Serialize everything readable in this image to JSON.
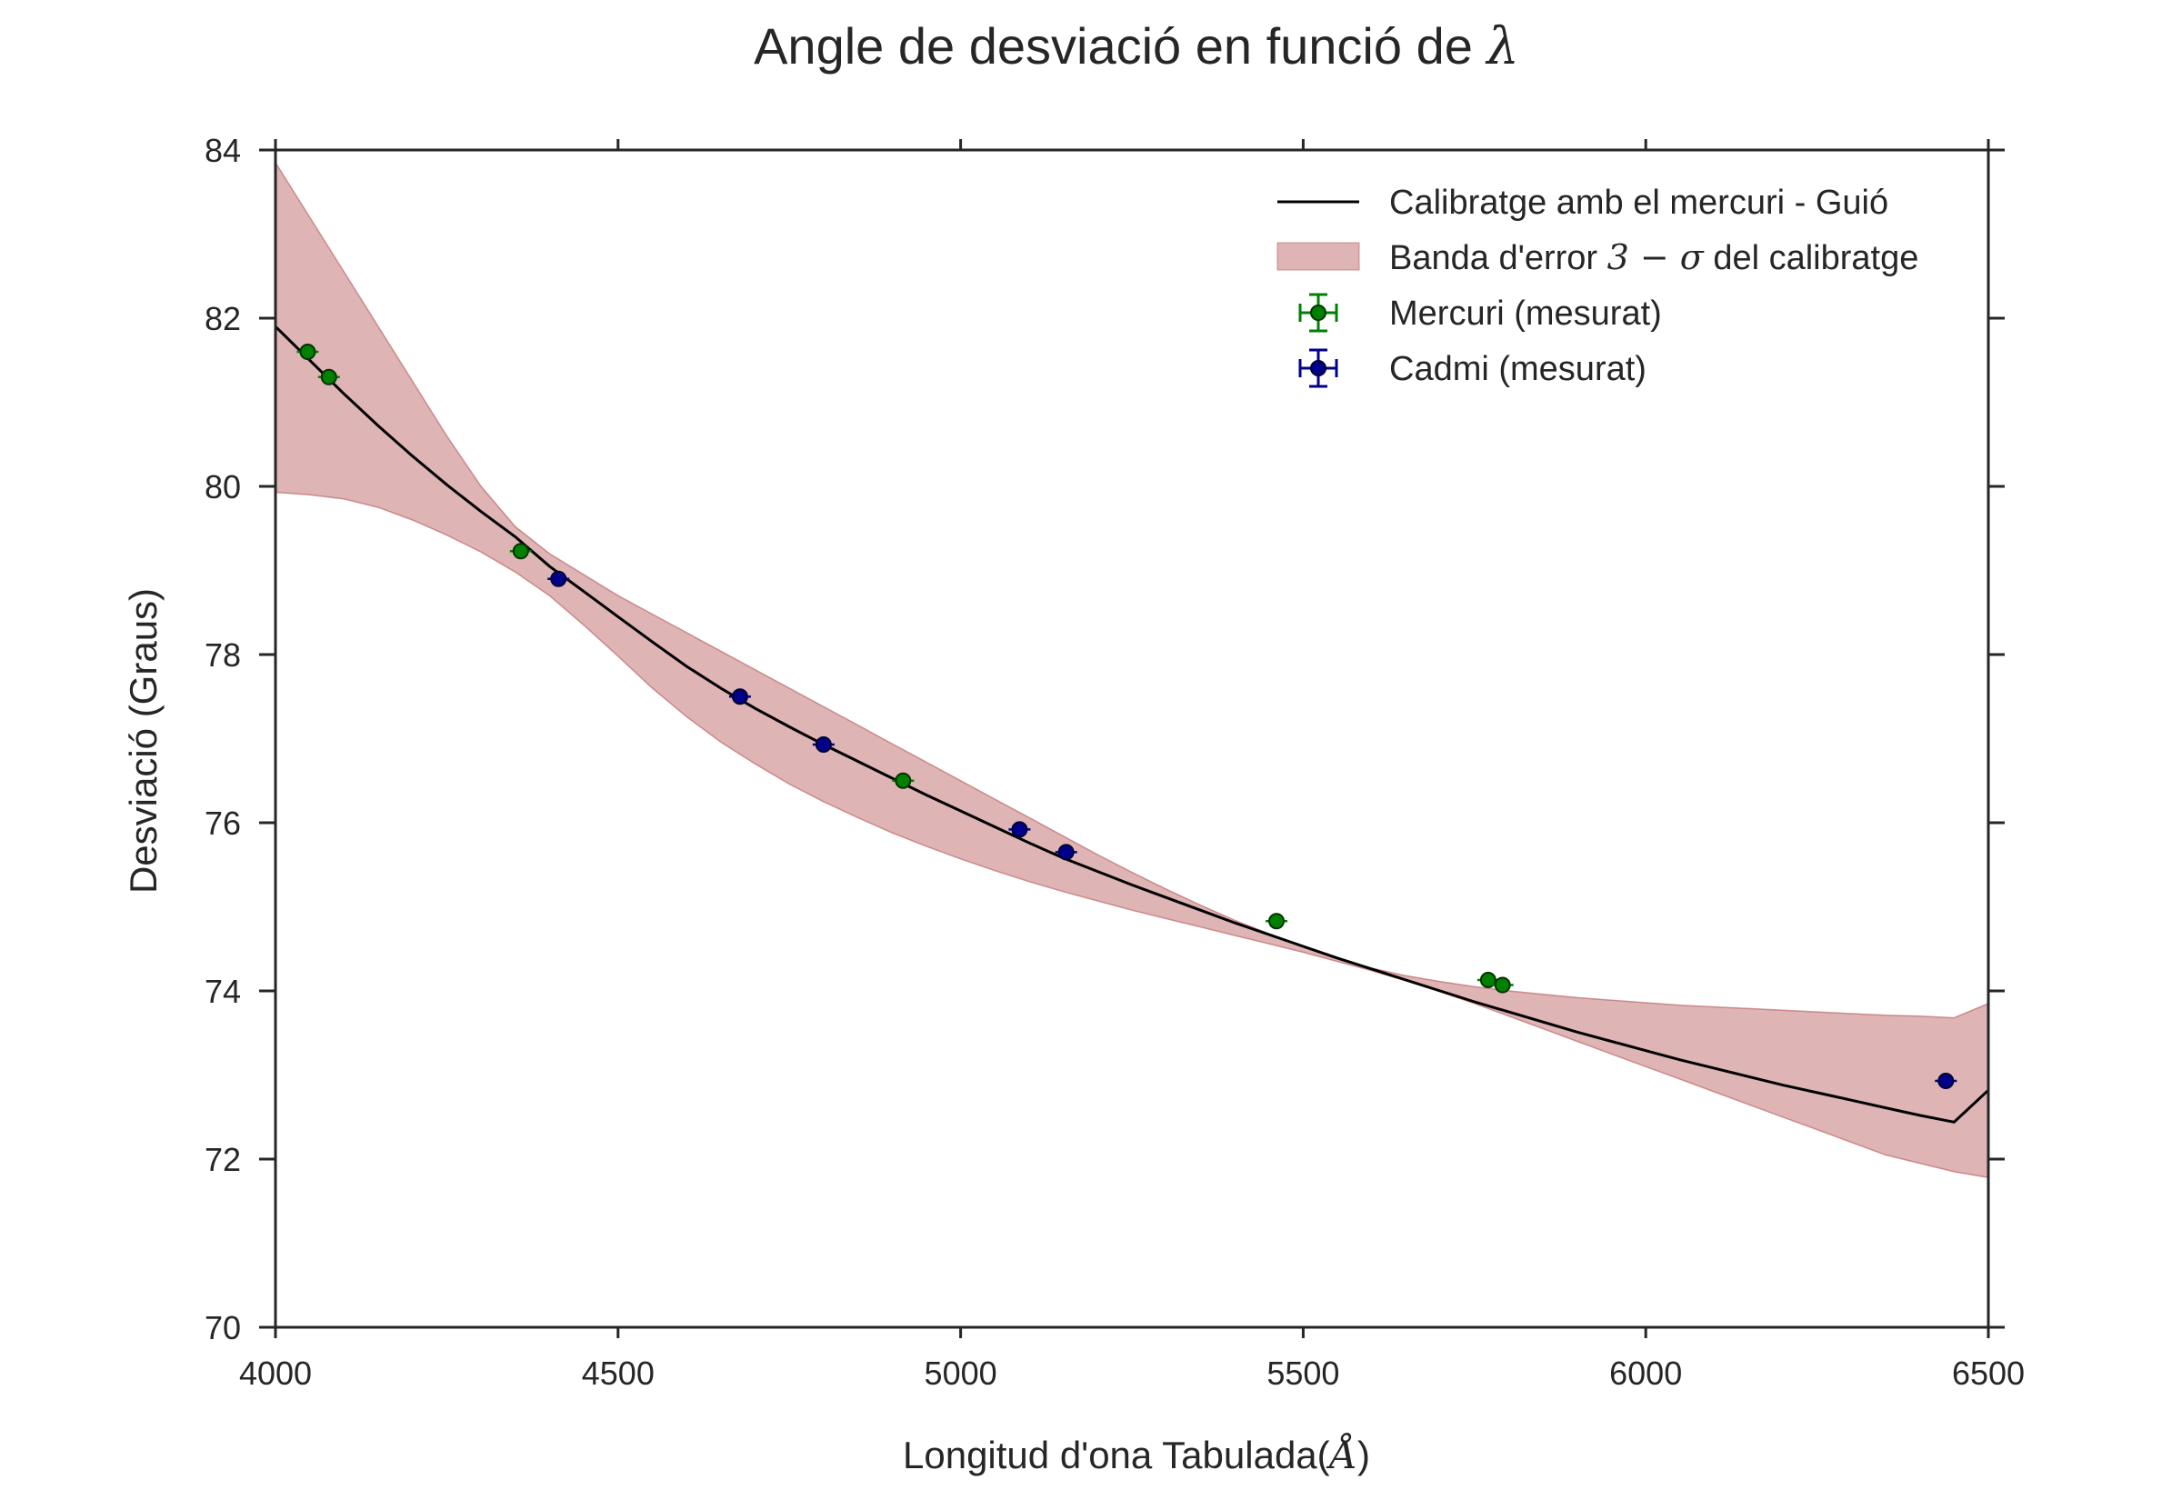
{
  "chart_data": {
    "type": "scatter",
    "title": "Angle de desviació en funció de",
    "title_symbol": "λ",
    "xlabel": "Longitud d'ona Tabulada(",
    "xlabel_unit": "Å",
    "xlabel_close": ")",
    "ylabel": "Desviació (Graus)",
    "xlim": [
      4000,
      6500
    ],
    "ylim": [
      70,
      84
    ],
    "xticks": [
      4000,
      4500,
      5000,
      5500,
      6000,
      6500
    ],
    "yticks": [
      70,
      72,
      74,
      76,
      78,
      80,
      82,
      84
    ],
    "x_tick_labels": [
      "4000",
      "4500",
      "5000",
      "5500",
      "6000",
      "6500"
    ],
    "y_tick_labels": [
      "70",
      "72",
      "74",
      "76",
      "78",
      "80",
      "82",
      "84"
    ],
    "grid": false,
    "legend_position": "top-right",
    "calibration_curve": {
      "name": "Calibratge amb el mercuri - Guió",
      "color": "#000000",
      "x": [
        4000,
        4050,
        4100,
        4150,
        4200,
        4250,
        4300,
        4350,
        4400,
        4450,
        4500,
        4550,
        4600,
        4650,
        4700,
        4750,
        4800,
        4850,
        4900,
        4950,
        5000,
        5050,
        5100,
        5150,
        5200,
        5250,
        5300,
        5350,
        5400,
        5450,
        5500,
        5550,
        5600,
        5650,
        5700,
        5750,
        5800,
        5850,
        5900,
        5950,
        6000,
        6050,
        6100,
        6150,
        6200,
        6250,
        6300,
        6350,
        6400,
        6450,
        6500
      ],
      "y": [
        81.9,
        81.5,
        81.1,
        80.72,
        80.36,
        80.02,
        79.7,
        79.4,
        79.05,
        78.75,
        78.45,
        78.15,
        77.86,
        77.6,
        77.36,
        77.14,
        76.93,
        76.73,
        76.53,
        76.33,
        76.14,
        75.95,
        75.76,
        75.58,
        75.42,
        75.26,
        75.11,
        74.96,
        74.81,
        74.67,
        74.53,
        74.39,
        74.26,
        74.13,
        74.0,
        73.87,
        73.75,
        73.63,
        73.51,
        73.4,
        73.29,
        73.18,
        73.08,
        72.98,
        72.88,
        72.79,
        72.7,
        72.61,
        72.52,
        72.44,
        72.82
      ]
    },
    "error_band": {
      "name_prefix": "Banda d'error",
      "name_math": "3 − σ",
      "name_suffix": "del calibratge",
      "color": "#b5585b",
      "x": [
        4000,
        4050,
        4100,
        4150,
        4200,
        4250,
        4300,
        4350,
        4400,
        4450,
        4500,
        4550,
        4600,
        4650,
        4700,
        4750,
        4800,
        4850,
        4900,
        4950,
        5000,
        5050,
        5100,
        5150,
        5200,
        5250,
        5300,
        5350,
        5400,
        5450,
        5500,
        5550,
        5600,
        5650,
        5700,
        5750,
        5800,
        5850,
        5900,
        5950,
        6000,
        6050,
        6100,
        6150,
        6200,
        6250,
        6300,
        6350,
        6400,
        6450,
        6500
      ],
      "upper": [
        83.85,
        83.2,
        82.55,
        81.9,
        81.25,
        80.6,
        80.0,
        79.52,
        79.2,
        78.95,
        78.7,
        78.48,
        78.26,
        78.04,
        77.82,
        77.6,
        77.38,
        77.16,
        76.94,
        76.72,
        76.5,
        76.28,
        76.06,
        75.84,
        75.62,
        75.41,
        75.21,
        75.02,
        74.84,
        74.68,
        74.52,
        74.38,
        74.27,
        74.18,
        74.11,
        74.05,
        74.0,
        73.96,
        73.92,
        73.89,
        73.86,
        73.83,
        73.81,
        73.79,
        73.77,
        73.75,
        73.73,
        73.71,
        73.7,
        73.68,
        73.85
      ],
      "lower": [
        79.93,
        79.9,
        79.85,
        79.75,
        79.6,
        79.42,
        79.22,
        78.98,
        78.7,
        78.35,
        77.98,
        77.6,
        77.26,
        76.96,
        76.7,
        76.46,
        76.25,
        76.06,
        75.88,
        75.72,
        75.57,
        75.43,
        75.3,
        75.18,
        75.07,
        74.96,
        74.86,
        74.76,
        74.66,
        74.56,
        74.46,
        74.35,
        74.24,
        74.12,
        73.99,
        73.85,
        73.7,
        73.55,
        73.4,
        73.25,
        73.1,
        72.95,
        72.8,
        72.65,
        72.5,
        72.35,
        72.2,
        72.05,
        71.95,
        71.85,
        71.78
      ]
    },
    "series": [
      {
        "name": "Mercuri (mesurat)",
        "color": "#008000",
        "edge_color": "#003300",
        "x": [
          4047,
          4078,
          4358,
          4916,
          5461,
          5770,
          5791
        ],
        "y": [
          81.6,
          81.3,
          79.23,
          76.5,
          74.83,
          74.13,
          74.07
        ]
      },
      {
        "name": "Cadmi (mesurat)",
        "color": "#00008b",
        "edge_color": "#000033",
        "x": [
          4413,
          4678,
          4800,
          5086,
          5154,
          6438
        ],
        "y": [
          78.9,
          77.5,
          76.93,
          75.92,
          75.65,
          72.93
        ]
      }
    ]
  }
}
